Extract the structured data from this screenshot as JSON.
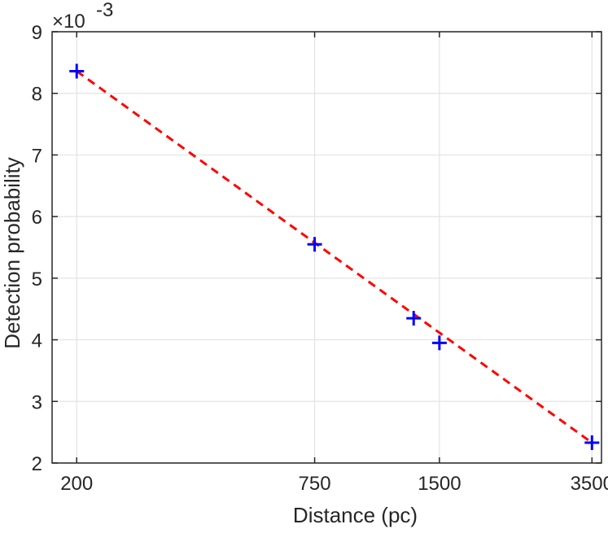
{
  "chart_data": {
    "type": "scatter",
    "title": "",
    "xlabel": "Distance (pc)",
    "ylabel": "Detection probability",
    "x_scale": "log",
    "y_scale": "linear",
    "y_multiplier_label": "×10",
    "y_multiplier_exponent": "-3",
    "xlim": [
      200,
      3500
    ],
    "ylim": [
      2,
      9
    ],
    "x_ticks": [
      200,
      750,
      1500,
      3500
    ],
    "x_tick_labels": [
      "200",
      "750",
      "1500",
      "3500"
    ],
    "y_ticks": [
      2,
      3,
      4,
      5,
      6,
      7,
      8,
      9
    ],
    "y_tick_labels": [
      "2",
      "3",
      "4",
      "5",
      "6",
      "7",
      "8",
      "9"
    ],
    "grid": true,
    "series": [
      {
        "x": [
          200,
          750,
          1300,
          1500,
          3500
        ],
        "y": [
          8.36,
          5.55,
          4.35,
          3.95,
          2.33
        ],
        "marker": "plus",
        "color": "#0000ff"
      },
      {
        "x": [
          200,
          3500
        ],
        "y": [
          8.36,
          2.33
        ],
        "line_style": "dashed",
        "color": "#ff0000"
      }
    ]
  }
}
